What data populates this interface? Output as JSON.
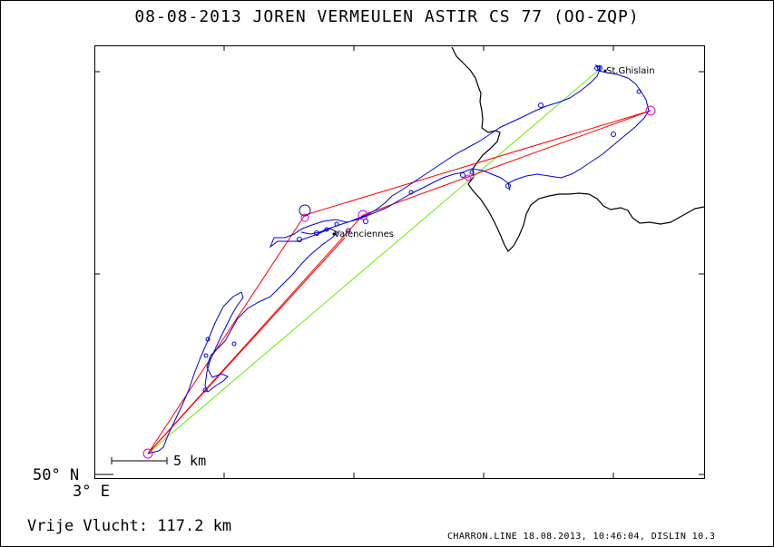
{
  "header": {
    "title": "08-08-2013   JOREN VERMEULEN   ASTIR CS 77 (OO-ZQP)"
  },
  "map": {
    "lat_label": "50° N",
    "lon_label": "3° E",
    "scale_label": "5 km",
    "places": {
      "st_ghislain": "St.Ghislain",
      "valenciennes": "Valenciennes"
    },
    "colors": {
      "track": "#0000dd",
      "task_legs": "#ff0000",
      "straight_line": "#66ee00",
      "turnpoints": "#dd00dd",
      "border": "#000000"
    }
  },
  "stats": {
    "distance_text": "Vrije Vlucht:  117.2 km"
  },
  "footer": {
    "text": "CHARRON.LINE 18.08.2013, 10:46:04, DISLIN 10.3"
  }
}
